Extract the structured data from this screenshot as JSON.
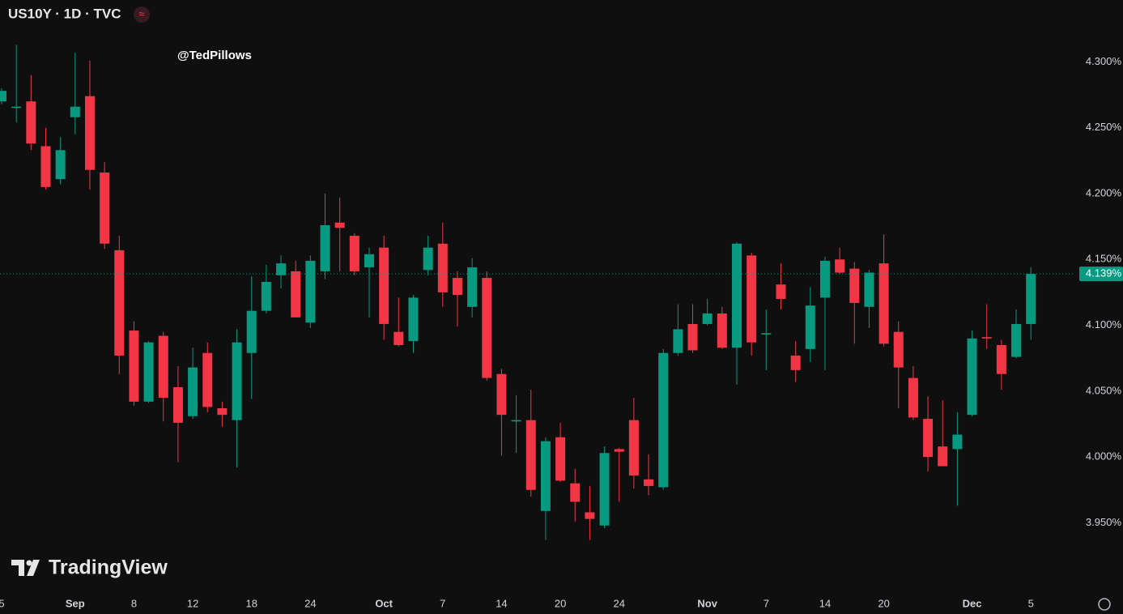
{
  "chart_data": {
    "type": "candlestick",
    "title": "US10Y · 1D · TVC",
    "annotation": "@TedPillows",
    "watermark": "TradingView",
    "up_color": "#089981",
    "down_color": "#f23645",
    "categories": [
      "5",
      null,
      null,
      null,
      null,
      "Sep",
      null,
      null,
      null,
      "8",
      null,
      null,
      null,
      "12",
      null,
      null,
      null,
      "18",
      null,
      null,
      null,
      "24",
      null,
      null,
      null,
      null,
      "Oct",
      null,
      null,
      null,
      "7",
      null,
      null,
      null,
      "14",
      null,
      null,
      null,
      "20",
      null,
      null,
      null,
      "24",
      null,
      null,
      null,
      null,
      null,
      "Nov",
      null,
      null,
      null,
      "7",
      null,
      null,
      null,
      "14",
      null,
      null,
      null,
      "20",
      null,
      null,
      null,
      null,
      null,
      "Dec",
      null,
      null,
      null,
      "5"
    ],
    "open": [
      4.27,
      4.265,
      4.27,
      4.236,
      4.211,
      4.258,
      4.274,
      4.216,
      4.157,
      4.096,
      4.042,
      4.092,
      4.053,
      4.031,
      4.079,
      4.037,
      4.028,
      4.079,
      4.111,
      4.138,
      4.141,
      4.102,
      4.141,
      4.178,
      4.168,
      4.144,
      4.159,
      4.095,
      4.088,
      4.142,
      4.162,
      4.136,
      4.114,
      4.136,
      4.063,
      4.027,
      4.028,
      3.959,
      4.015,
      3.98,
      3.958,
      3.948,
      4.006,
      4.028,
      3.983,
      3.977,
      4.079,
      4.101,
      4.101,
      4.109,
      4.083,
      4.153,
      4.093,
      4.131,
      4.077,
      4.082,
      4.121,
      4.15,
      4.143,
      4.114,
      4.147,
      4.095,
      4.06,
      4.029,
      4.008,
      4.006,
      4.032,
      4.091,
      4.085,
      4.076,
      4.101
    ],
    "high": [
      4.28,
      4.313,
      4.29,
      4.25,
      4.243,
      4.307,
      4.301,
      4.224,
      4.168,
      4.103,
      4.088,
      4.095,
      4.069,
      4.083,
      4.087,
      4.042,
      4.097,
      4.137,
      4.146,
      4.153,
      4.149,
      4.153,
      4.2,
      4.197,
      4.17,
      4.159,
      4.168,
      4.121,
      4.123,
      4.168,
      4.178,
      4.141,
      4.151,
      4.141,
      4.067,
      4.047,
      4.051,
      4.015,
      4.026,
      3.991,
      3.978,
      4.008,
      4.007,
      4.045,
      4.002,
      4.082,
      4.116,
      4.116,
      4.12,
      4.114,
      4.163,
      4.155,
      4.112,
      4.147,
      4.088,
      4.129,
      4.152,
      4.159,
      4.148,
      4.142,
      4.169,
      4.103,
      4.069,
      4.046,
      4.043,
      4.034,
      4.096,
      4.116,
      4.089,
      4.112,
      4.144
    ],
    "low": [
      4.268,
      4.254,
      4.233,
      4.203,
      4.207,
      4.245,
      4.203,
      4.158,
      4.063,
      4.039,
      4.041,
      4.027,
      3.996,
      4.029,
      4.034,
      4.023,
      3.992,
      4.044,
      4.109,
      4.128,
      4.106,
      4.098,
      4.135,
      4.141,
      4.138,
      4.106,
      4.089,
      4.084,
      4.079,
      4.138,
      4.114,
      4.099,
      4.106,
      4.058,
      4.001,
      4.003,
      3.97,
      3.937,
      3.981,
      3.951,
      3.937,
      3.946,
      3.966,
      3.976,
      3.971,
      3.975,
      4.077,
      4.079,
      4.1,
      4.082,
      4.055,
      4.077,
      4.066,
      4.112,
      4.057,
      4.072,
      4.066,
      4.139,
      4.086,
      4.098,
      4.084,
      4.037,
      4.028,
      3.989,
      3.993,
      3.963,
      4.031,
      4.082,
      4.051,
      4.075,
      4.089
    ],
    "close": [
      4.278,
      4.266,
      4.238,
      4.205,
      4.233,
      4.266,
      4.218,
      4.162,
      4.077,
      4.042,
      4.087,
      4.045,
      4.026,
      4.068,
      4.038,
      4.032,
      4.087,
      4.111,
      4.133,
      4.147,
      4.106,
      4.149,
      4.176,
      4.174,
      4.141,
      4.154,
      4.101,
      4.085,
      4.121,
      4.159,
      4.125,
      4.123,
      4.144,
      4.06,
      4.032,
      4.028,
      3.975,
      4.012,
      3.982,
      3.966,
      3.953,
      4.003,
      4.004,
      3.986,
      3.978,
      4.079,
      4.097,
      4.081,
      4.109,
      4.083,
      4.162,
      4.087,
      4.094,
      4.12,
      4.066,
      4.115,
      4.149,
      4.14,
      4.117,
      4.14,
      4.086,
      4.068,
      4.03,
      4.0,
      3.993,
      4.017,
      4.09,
      4.09,
      4.063,
      4.101,
      4.139
    ],
    "ylim": [
      3.898,
      4.347
    ],
    "yticks": [
      {
        "value": 3.95,
        "label": "3.950%"
      },
      {
        "value": 4.0,
        "label": "4.000%"
      },
      {
        "value": 4.05,
        "label": "4.050%"
      },
      {
        "value": 4.1,
        "label": "4.100%"
      },
      {
        "value": 4.15,
        "label": "4.150%"
      },
      {
        "value": 4.2,
        "label": "4.200%"
      },
      {
        "value": 4.25,
        "label": "4.250%"
      },
      {
        "value": 4.3,
        "label": "4.300%"
      }
    ],
    "last_price": {
      "value": 4.139,
      "label": "4.139%"
    }
  }
}
